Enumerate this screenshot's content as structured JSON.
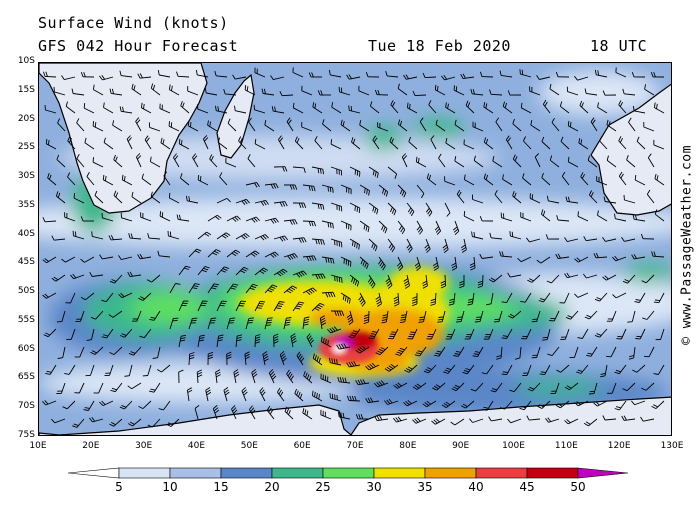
{
  "header": {
    "title": "Surface Wind (knots)",
    "subtitle": "GFS 042 Hour Forecast",
    "date": "Tue 18 Feb 2020",
    "time": "18 UTC"
  },
  "credit": "© www.PassageWeather.com",
  "map": {
    "lat_labels": [
      "10S",
      "15S",
      "20S",
      "25S",
      "30S",
      "35S",
      "40S",
      "45S",
      "50S",
      "55S",
      "60S",
      "65S",
      "70S",
      "75S"
    ],
    "lon_labels": [
      "10E",
      "20E",
      "30E",
      "40E",
      "50E",
      "60E",
      "70E",
      "80E",
      "90E",
      "100E",
      "110E",
      "120E",
      "130E"
    ],
    "lat_range": [
      -10,
      -75
    ],
    "lon_range": [
      10,
      130
    ],
    "storm_center": {
      "lon": 66,
      "lat": -55
    }
  },
  "legend": {
    "labels": [
      "5",
      "10",
      "15",
      "20",
      "25",
      "30",
      "35",
      "40",
      "45",
      "50"
    ],
    "colors": [
      "#ffffff",
      "#d8e4f4",
      "#a8c0e6",
      "#5a86c8",
      "#3bb88c",
      "#5ee05e",
      "#f0e000",
      "#f0a000",
      "#e84040",
      "#c00010",
      "#c000c0"
    ]
  }
}
